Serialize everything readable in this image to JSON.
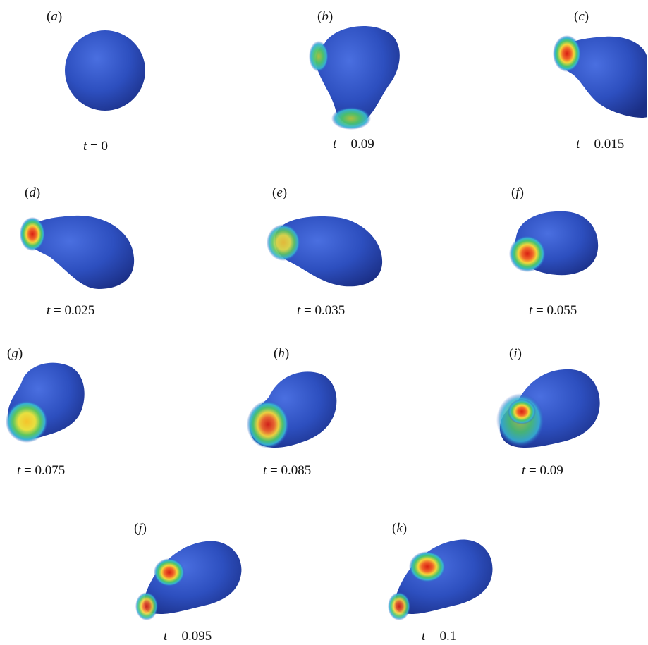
{
  "figure": {
    "panels": [
      {
        "id": "a",
        "label": "a",
        "time": "0"
      },
      {
        "id": "b",
        "label": "b",
        "time": "0.09"
      },
      {
        "id": "c",
        "label": "c",
        "time": "0.015"
      },
      {
        "id": "d",
        "label": "d",
        "time": "0.025"
      },
      {
        "id": "e",
        "label": "e",
        "time": "0.035"
      },
      {
        "id": "f",
        "label": "f",
        "time": "0.055"
      },
      {
        "id": "g",
        "label": "g",
        "time": "0.075"
      },
      {
        "id": "h",
        "label": "h",
        "time": "0.085"
      },
      {
        "id": "i",
        "label": "i",
        "time": "0.09"
      },
      {
        "id": "j",
        "label": "j",
        "time": "0.095"
      },
      {
        "id": "k",
        "label": "k",
        "time": "0.1"
      }
    ],
    "time_variable": "t",
    "colors": {
      "body": "#2d4fbf",
      "hot": "#e0241a",
      "warm": "#f4e13a",
      "mid": "#3bbf66",
      "cool": "#36b3d4"
    }
  }
}
